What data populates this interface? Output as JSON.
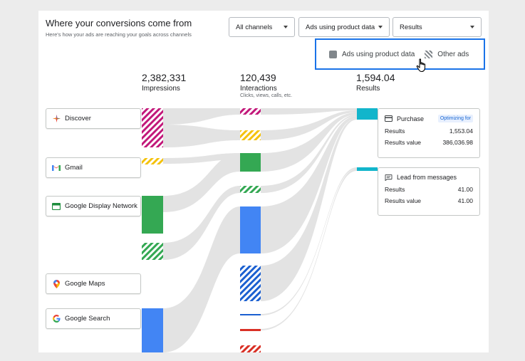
{
  "header": {
    "title": "Where your conversions come from",
    "subtitle": "Here's how your ads are reaching your goals across channels"
  },
  "filters": [
    {
      "label": "All channels"
    },
    {
      "label": "Ads using product data"
    },
    {
      "label": "Results"
    }
  ],
  "legend": {
    "solid_label": "Ads using product data",
    "hatched_label": "Other ads"
  },
  "columns": {
    "impressions": {
      "value": "2,382,331",
      "label": "Impressions"
    },
    "interactions": {
      "value": "120,439",
      "label": "Interactions",
      "sub": "Clicks, views, calls, etc."
    },
    "results": {
      "value": "1,594.04",
      "label": "Results"
    }
  },
  "channels": [
    {
      "label": "Discover",
      "icon": "discover-icon"
    },
    {
      "label": "Gmail",
      "icon": "gmail-icon"
    },
    {
      "label": "Google Display Network",
      "icon": "display-network-icon"
    },
    {
      "label": "Google Maps",
      "icon": "maps-pin-icon"
    },
    {
      "label": "Google Search",
      "icon": "google-g-icon"
    }
  ],
  "results_panels": [
    {
      "title": "Purchase",
      "icon": "credit-card-icon",
      "badge": "Optimizing for",
      "rows": [
        {
          "label": "Results",
          "value": "1,553.04"
        },
        {
          "label": "Results value",
          "value": "386,036.98"
        }
      ]
    },
    {
      "title": "Lead from messages",
      "icon": "message-icon",
      "rows": [
        {
          "label": "Results",
          "value": "41.00"
        },
        {
          "label": "Results value",
          "value": "41.00"
        }
      ]
    }
  ],
  "colors": {
    "discover": "#c2187a",
    "gmail": "#f4c20d",
    "display": "#34a853",
    "search": "#4285f4",
    "search_dark": "#1a5fd0",
    "red": "#d93025",
    "results": "#12b5cb",
    "flow": "#e3e3e3",
    "accent": "#1a73e8"
  }
}
